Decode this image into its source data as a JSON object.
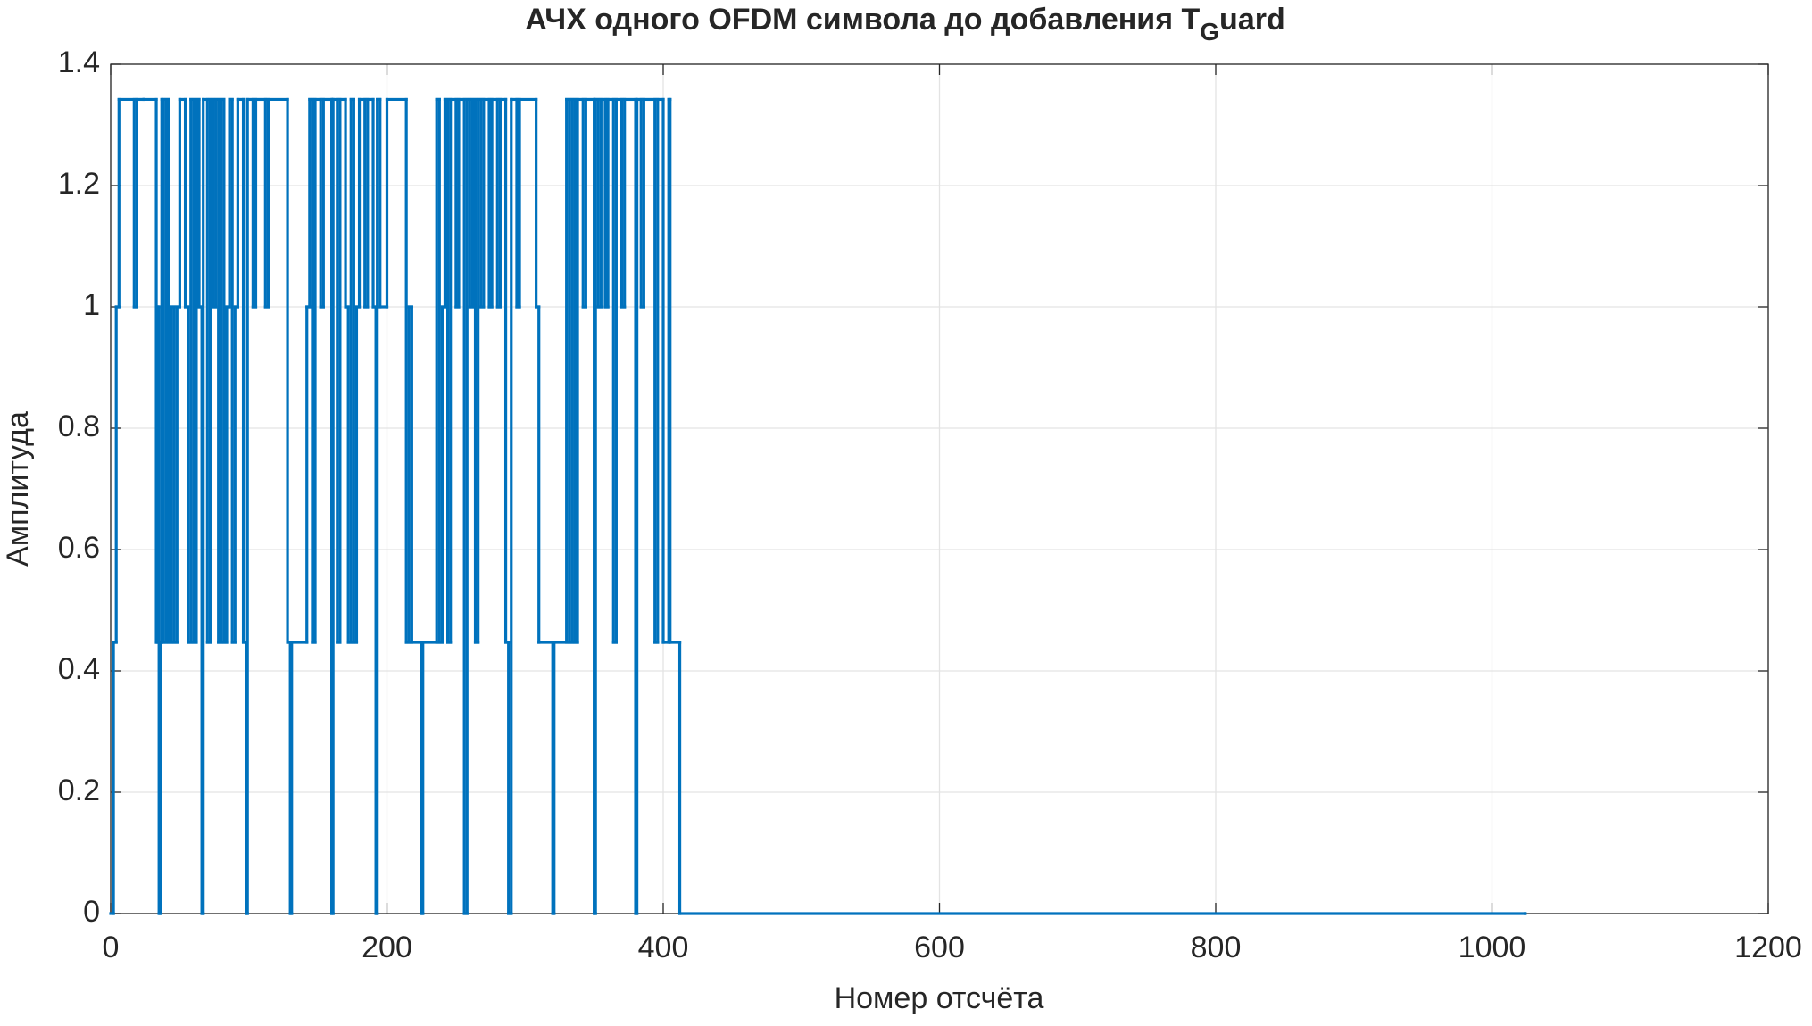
{
  "chart_data": {
    "type": "stairs",
    "title": "АЧХ одного OFDM символа до добавления T",
    "title_subscript": "G",
    "title_end": "uard",
    "xlabel": "Номер отсчёта",
    "ylabel": "Амплитуда",
    "xlim": [
      0,
      1200
    ],
    "xticks": [
      0,
      200,
      400,
      600,
      800,
      1000,
      1200
    ],
    "ylim": [
      0,
      1.4
    ],
    "yticks": [
      0,
      0.2,
      0.4,
      0.6,
      0.8,
      1,
      1.2,
      1.4
    ],
    "grid": true,
    "color": "#0072BD",
    "x": [
      0,
      2,
      4,
      6,
      17,
      19,
      24,
      33,
      34,
      35,
      36,
      37,
      38,
      40,
      42,
      44,
      46,
      48,
      50,
      54,
      56,
      58,
      60,
      62,
      64,
      66,
      67,
      70,
      72,
      74,
      76,
      78,
      80,
      82,
      84,
      86,
      88,
      90,
      92,
      96,
      98,
      99,
      103,
      105,
      112,
      114,
      128,
      130,
      131,
      142,
      144,
      146,
      148,
      152,
      154,
      160,
      161,
      164,
      166,
      170,
      172,
      174,
      176,
      178,
      180,
      184,
      186,
      190,
      192,
      193,
      195,
      200,
      214,
      216,
      218,
      225,
      226,
      236,
      238,
      240,
      242,
      244,
      246,
      250,
      252,
      256,
      258,
      260,
      262,
      264,
      266,
      268,
      270,
      274,
      276,
      280,
      282,
      286,
      288,
      290,
      294,
      296,
      308,
      310,
      320,
      321,
      330,
      332,
      334,
      336,
      338,
      342,
      344,
      350,
      351,
      353,
      355,
      358,
      360,
      364,
      366,
      370,
      372,
      380,
      381,
      384,
      386,
      394,
      396,
      400,
      404,
      405,
      412,
      1024
    ],
    "values": [
      0,
      0.447,
      1,
      1.342,
      1,
      1.342,
      1.342,
      0.447,
      1,
      0,
      0.447,
      1.342,
      0.447,
      1.342,
      0.447,
      1,
      0.447,
      1,
      1.342,
      1,
      0.447,
      1.342,
      0.447,
      1.342,
      1,
      0,
      1.342,
      0.447,
      1.342,
      1,
      1.342,
      0.447,
      1.342,
      0.447,
      1,
      1.342,
      0.447,
      1,
      1.342,
      0.447,
      0,
      1.342,
      1,
      1.342,
      1,
      1.342,
      0.447,
      0,
      0.447,
      1,
      1.342,
      0.447,
      1.342,
      1,
      1.342,
      0,
      1.342,
      0.447,
      1.342,
      1,
      0.447,
      1.342,
      0.447,
      1,
      1.342,
      1,
      1.342,
      1,
      0,
      1.342,
      1,
      1.342,
      0.447,
      1,
      0.447,
      0,
      0.447,
      1.342,
      0.447,
      1,
      1.342,
      0.447,
      1.342,
      1,
      1.342,
      0,
      1.342,
      1,
      1.342,
      0.447,
      1.342,
      1,
      1.342,
      1,
      1.342,
      1,
      1.342,
      0.447,
      0,
      1.342,
      1,
      1.342,
      1,
      0.447,
      0,
      0.447,
      1.342,
      0.447,
      1.342,
      0.447,
      1.342,
      1,
      1.342,
      0,
      1.342,
      1,
      1.342,
      1,
      1.342,
      0.447,
      1.342,
      1,
      1.342,
      0,
      1.342,
      1,
      1.342,
      0.447,
      1.342,
      0.447,
      1.342,
      0.447,
      0,
      0
    ]
  }
}
